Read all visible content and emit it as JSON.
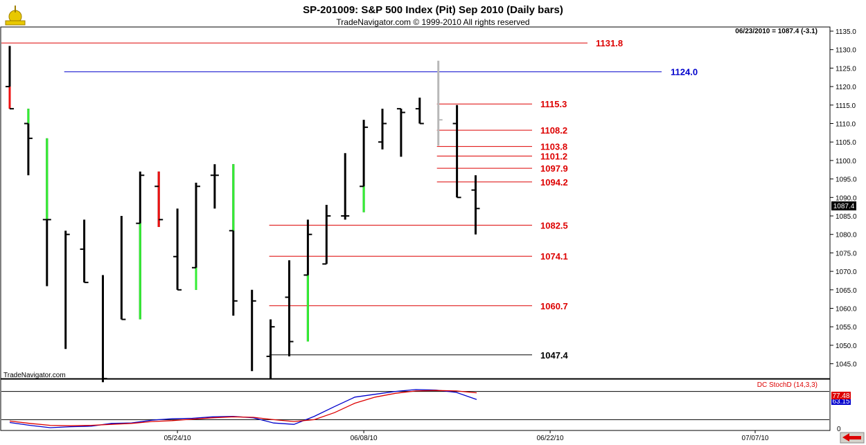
{
  "header": {
    "title": "SP-201009:  S&P 500 Index (Pit) Sep 2010  (Daily bars)",
    "subtitle": "TradeNavigator.com © 1999-2010 All rights reserved",
    "readout": "06/23/2010 = 1087.4 (-3.1)"
  },
  "watermark": "TradeNavigator.com",
  "last_price_label": "1087.4",
  "indicator": {
    "name": "DC StochD (14,3,3)",
    "value_red": "77.48",
    "value_blue": "63.15",
    "zero_label": "0"
  },
  "colors": {
    "up_bar": "#33ee33",
    "down_bar": "#ee1111",
    "bar": "#000000",
    "projected_bar": "#b8b8b8",
    "level_red": "#dd0000",
    "level_blue": "#0000cc",
    "level_black": "#000000",
    "stoch_red": "#dd0000",
    "stoch_blue": "#0000cc",
    "logo": "#d4b800"
  },
  "chart_data": {
    "type": "ohlc",
    "y_axis": {
      "min": 1040,
      "max": 1136,
      "ticks": [
        1045,
        1050,
        1055,
        1060,
        1065,
        1070,
        1075,
        1080,
        1085,
        1090,
        1095,
        1100,
        1105,
        1110,
        1115,
        1120,
        1125,
        1130,
        1135
      ]
    },
    "x_axis_labels": [
      {
        "index": 9,
        "label": "05/24/10"
      },
      {
        "index": 19,
        "label": "06/08/10"
      },
      {
        "index": 29,
        "label": "06/22/10"
      },
      {
        "index": 40,
        "label": "07/07/10"
      }
    ],
    "bars": [
      {
        "open": 1120,
        "high": 1131,
        "low": 1114,
        "close": 1114,
        "color": "mixed_down_top"
      },
      {
        "open": 1110,
        "high": 1114,
        "low": 1096,
        "close": 1106,
        "color": "mixed_up_top"
      },
      {
        "open": 1084,
        "high": 1106,
        "low": 1066,
        "close": 1084,
        "color": "mixed_up_top"
      },
      {
        "open": null,
        "high": 1081,
        "low": 1049,
        "close": 1080,
        "color": "black"
      },
      {
        "open": 1076,
        "high": 1084,
        "low": 1067,
        "close": 1067,
        "color": "black"
      },
      {
        "open": null,
        "high": 1069,
        "low": 1040,
        "close": 1041,
        "color": "black"
      },
      {
        "open": null,
        "high": 1085,
        "low": 1057,
        "close": 1057,
        "color": "black"
      },
      {
        "open": 1083,
        "high": 1097,
        "low": 1057,
        "close": 1096,
        "color": "mixed_up_bottom"
      },
      {
        "open": 1093,
        "high": 1097,
        "low": 1082,
        "close": 1084,
        "color": "mixed_down_bottom"
      },
      {
        "open": 1074,
        "high": 1087,
        "low": 1065,
        "close": 1065,
        "color": "black"
      },
      {
        "open": 1071,
        "high": 1094,
        "low": 1065,
        "close": 1093,
        "color": "mixed_up_bottom"
      },
      {
        "open": 1096,
        "high": 1099,
        "low": 1087,
        "close": 1096,
        "color": "black"
      },
      {
        "open": 1081,
        "high": 1099,
        "low": 1058,
        "close": 1062,
        "color": "mixed_up_top"
      },
      {
        "open": null,
        "high": 1065,
        "low": 1043,
        "close": 1062,
        "color": "black"
      },
      {
        "open": 1047,
        "high": 1057,
        "low": 1041,
        "close": 1055,
        "color": "black"
      },
      {
        "open": 1063,
        "high": 1073,
        "low": 1047,
        "close": 1051,
        "color": "black"
      },
      {
        "open": 1069,
        "high": 1084,
        "low": 1051,
        "close": 1080,
        "color": "mixed_up_bottom"
      },
      {
        "open": 1072,
        "high": 1088,
        "low": 1072,
        "close": 1085,
        "color": "black"
      },
      {
        "open": 1085,
        "high": 1102,
        "low": 1084,
        "close": 1085,
        "color": "black"
      },
      {
        "open": 1093,
        "high": 1111,
        "low": 1086,
        "close": 1109,
        "color": "mixed_up_bottom"
      },
      {
        "open": 1105,
        "high": 1114,
        "low": 1103,
        "close": 1110,
        "color": "black"
      },
      {
        "open": 1114,
        "high": 1114,
        "low": 1101,
        "close": 1113,
        "color": "black"
      },
      {
        "open": 1114,
        "high": 1117,
        "low": 1110,
        "close": 1110,
        "color": "black"
      },
      {
        "open": null,
        "high": 1127,
        "low": 1104,
        "close": 1111,
        "color": "projected"
      },
      {
        "open": 1110,
        "high": 1115,
        "low": 1090,
        "close": 1090,
        "color": "black"
      },
      {
        "open": 1092,
        "high": 1096,
        "low": 1080,
        "close": 1087,
        "color": "black"
      }
    ],
    "levels": [
      {
        "value": 1131.8,
        "label": "1131.8",
        "color": "red",
        "x_from_index": -1
      },
      {
        "value": 1124.0,
        "label": "1124.0",
        "color": "blue",
        "x_from_index": 3
      },
      {
        "value": 1115.3,
        "label": "1115.3",
        "color": "red",
        "x_from_index": 23
      },
      {
        "value": 1108.2,
        "label": "1108.2",
        "color": "red",
        "x_from_index": 23
      },
      {
        "value": 1103.8,
        "label": "1103.8",
        "color": "red",
        "x_from_index": 23
      },
      {
        "value": 1101.2,
        "label": "1101.2",
        "color": "red",
        "x_from_index": 23
      },
      {
        "value": 1097.9,
        "label": "1097.9",
        "color": "red",
        "x_from_index": 23
      },
      {
        "value": 1094.2,
        "label": "1094.2",
        "color": "red",
        "x_from_index": 23
      },
      {
        "value": 1082.5,
        "label": "1082.5",
        "color": "red",
        "x_from_index": 14
      },
      {
        "value": 1074.1,
        "label": "1074.1",
        "color": "red",
        "x_from_index": 14
      },
      {
        "value": 1060.7,
        "label": "1060.7",
        "color": "red",
        "x_from_index": 14
      },
      {
        "value": 1047.4,
        "label": "1047.4",
        "color": "black",
        "x_from_index": 14
      }
    ],
    "stochastic": {
      "y_range": [
        0,
        100
      ],
      "ref_levels": [
        80,
        20
      ],
      "red": [
        17,
        12,
        8,
        7,
        8,
        10,
        12,
        16,
        18,
        21,
        24,
        26,
        25,
        20,
        16,
        20,
        35,
        55,
        68,
        76,
        81,
        82,
        81,
        77
      ],
      "blue": [
        14,
        8,
        3,
        5,
        6,
        12,
        13,
        19,
        22,
        23,
        26,
        27,
        24,
        13,
        10,
        27,
        48,
        68,
        74,
        80,
        84,
        83,
        78,
        63
      ]
    }
  }
}
